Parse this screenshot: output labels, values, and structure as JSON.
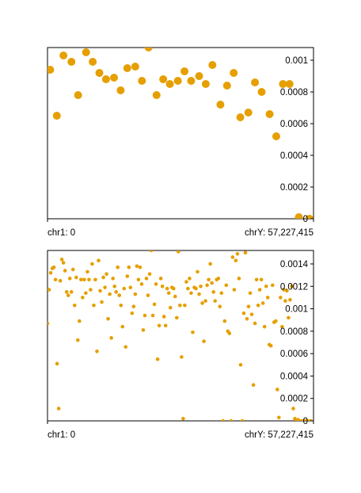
{
  "chart_data": [
    {
      "type": "scatter",
      "color": "#E69F00",
      "x_start_label": "chr1: 0",
      "x_end_label": "chrY: 57,227,415",
      "ylim": [
        0,
        0.00108
      ],
      "y_ticks": [
        "0",
        "0.0002",
        "0.0004",
        "0.0006",
        "0.0008",
        "0.001"
      ],
      "y_tick_values": [
        0,
        0.0002,
        0.0004,
        0.0006,
        0.0008,
        0.001
      ],
      "grid": false,
      "points": [
        [
          0.01,
          0.00094
        ],
        [
          0.035,
          0.00065
        ],
        [
          0.06,
          0.00103
        ],
        [
          0.09,
          0.00099
        ],
        [
          0.115,
          0.00078
        ],
        [
          0.145,
          0.00105
        ],
        [
          0.17,
          0.00099
        ],
        [
          0.195,
          0.00092
        ],
        [
          0.22,
          0.00088
        ],
        [
          0.25,
          0.00089
        ],
        [
          0.275,
          0.00081
        ],
        [
          0.3,
          0.00095
        ],
        [
          0.33,
          0.00096
        ],
        [
          0.355,
          0.00087
        ],
        [
          0.38,
          0.00108
        ],
        [
          0.41,
          0.00078
        ],
        [
          0.435,
          0.00088
        ],
        [
          0.46,
          0.00085
        ],
        [
          0.49,
          0.00087
        ],
        [
          0.515,
          0.00093
        ],
        [
          0.54,
          0.00087
        ],
        [
          0.57,
          0.0009
        ],
        [
          0.595,
          0.00085
        ],
        [
          0.62,
          0.00097
        ],
        [
          0.65,
          0.00072
        ],
        [
          0.675,
          0.00084
        ],
        [
          0.7,
          0.00092
        ],
        [
          0.725,
          0.00064
        ],
        [
          0.755,
          0.00067
        ],
        [
          0.78,
          0.00086
        ],
        [
          0.805,
          0.0008
        ],
        [
          0.835,
          0.00066
        ],
        [
          0.86,
          0.00052
        ],
        [
          0.885,
          0.00085
        ],
        [
          0.91,
          0.00085
        ],
        [
          0.945,
          1e-05
        ],
        [
          0.985,
          0.0
        ]
      ]
    },
    {
      "type": "scatter",
      "color": "#E69F00",
      "x_start_label": "chr1: 0",
      "x_end_label": "chrY: 57,227,415",
      "ylim": [
        0,
        0.00152
      ],
      "y_ticks": [
        "0",
        "0.0002",
        "0.0004",
        "0.0006",
        "0.0008",
        "0.001",
        "0.0012",
        "0.0014"
      ],
      "y_tick_values": [
        0,
        0.0002,
        0.0004,
        0.0006,
        0.0008,
        0.001,
        0.0012,
        0.0014
      ],
      "grid": false,
      "points": [
        [
          0.0,
          0.00087
        ],
        [
          0.006,
          0.00117
        ],
        [
          0.012,
          0.00132
        ],
        [
          0.018,
          0.00136
        ],
        [
          0.024,
          0.00137
        ],
        [
          0.03,
          0.00126
        ],
        [
          0.036,
          0.00051
        ],
        [
          0.042,
          0.00011
        ],
        [
          0.048,
          0.00125
        ],
        [
          0.054,
          0.00144
        ],
        [
          0.06,
          0.00141
        ],
        [
          0.066,
          0.00134
        ],
        [
          0.072,
          0.00115
        ],
        [
          0.078,
          0.00112
        ],
        [
          0.084,
          0.00127
        ],
        [
          0.09,
          0.00115
        ],
        [
          0.096,
          0.00135
        ],
        [
          0.102,
          0.00103
        ],
        [
          0.108,
          0.00128
        ],
        [
          0.114,
          0.00072
        ],
        [
          0.12,
          0.00089
        ],
        [
          0.126,
          0.00126
        ],
        [
          0.132,
          0.0011
        ],
        [
          0.138,
          0.00126
        ],
        [
          0.144,
          0.00114
        ],
        [
          0.15,
          0.00133
        ],
        [
          0.156,
          0.00126
        ],
        [
          0.162,
          0.00117
        ],
        [
          0.168,
          0.0014
        ],
        [
          0.174,
          0.00103
        ],
        [
          0.18,
          0.00126
        ],
        [
          0.186,
          0.00062
        ],
        [
          0.192,
          0.00143
        ],
        [
          0.198,
          0.00116
        ],
        [
          0.204,
          0.00106
        ],
        [
          0.21,
          0.00128
        ],
        [
          0.216,
          0.00119
        ],
        [
          0.222,
          0.00131
        ],
        [
          0.228,
          0.00091
        ],
        [
          0.234,
          0.00113
        ],
        [
          0.24,
          0.00074
        ],
        [
          0.246,
          0.00127
        ],
        [
          0.252,
          0.0012
        ],
        [
          0.258,
          0.00115
        ],
        [
          0.264,
          0.00137
        ],
        [
          0.27,
          0.00112
        ],
        [
          0.276,
          0.00103
        ],
        [
          0.282,
          0.00084
        ],
        [
          0.288,
          0.00118
        ],
        [
          0.294,
          0.00066
        ],
        [
          0.3,
          0.00129
        ],
        [
          0.306,
          0.00137
        ],
        [
          0.312,
          0.00119
        ],
        [
          0.318,
          0.00096
        ],
        [
          0.324,
          0.00102
        ],
        [
          0.33,
          0.00113
        ],
        [
          0.336,
          0.00138
        ],
        [
          0.342,
          0.00126
        ],
        [
          0.348,
          0.00137
        ],
        [
          0.354,
          0.00122
        ],
        [
          0.36,
          0.00081
        ],
        [
          0.366,
          0.00094
        ],
        [
          0.372,
          0.00127
        ],
        [
          0.378,
          0.00112
        ],
        [
          0.384,
          0.00131
        ],
        [
          0.39,
          0.00152
        ],
        [
          0.396,
          0.00094
        ],
        [
          0.402,
          0.00104
        ],
        [
          0.408,
          0.00122
        ],
        [
          0.414,
          0.00055
        ],
        [
          0.42,
          0.00085
        ],
        [
          0.426,
          0.00127
        ],
        [
          0.432,
          0.0012
        ],
        [
          0.438,
          0.00093
        ],
        [
          0.444,
          0.00085
        ],
        [
          0.45,
          0.00118
        ],
        [
          0.456,
          0.00114
        ],
        [
          0.462,
          0.00101
        ],
        [
          0.468,
          0.00119
        ],
        [
          0.474,
          0.00118
        ],
        [
          0.48,
          0.00111
        ],
        [
          0.486,
          0.00092
        ],
        [
          0.492,
          0.00151
        ],
        [
          0.498,
          0.00103
        ],
        [
          0.504,
          0.00057
        ],
        [
          0.51,
          2e-05
        ],
        [
          0.516,
          0.00103
        ],
        [
          0.522,
          0.00124
        ],
        [
          0.528,
          0.00118
        ],
        [
          0.534,
          0.00127
        ],
        [
          0.54,
          0.00114
        ],
        [
          0.546,
          0.00079
        ],
        [
          0.552,
          0.00119
        ],
        [
          0.558,
          0.00118
        ],
        [
          0.564,
          0.00133
        ],
        [
          0.57,
          0.00113
        ],
        [
          0.576,
          0.0012
        ],
        [
          0.582,
          0.00105
        ],
        [
          0.588,
          0.00071
        ],
        [
          0.594,
          0.00107
        ],
        [
          0.6,
          0.00121
        ],
        [
          0.606,
          0.00126
        ],
        [
          0.612,
          0.0014
        ],
        [
          0.618,
          0.00123
        ],
        [
          0.624,
          0.00115
        ],
        [
          0.63,
          0.00107
        ],
        [
          0.636,
          0.00126
        ],
        [
          0.642,
          0.00127
        ],
        [
          0.648,
          0.00102
        ],
        [
          0.654,
          0.00114
        ],
        [
          0.66,
          0.0
        ],
        [
          0.666,
          0.00089
        ],
        [
          0.672,
          0.00121
        ],
        [
          0.678,
          0.0008
        ],
        [
          0.684,
          0.00078
        ],
        [
          0.69,
          0.0
        ],
        [
          0.696,
          0.00146
        ],
        [
          0.702,
          0.00117
        ],
        [
          0.708,
          0.00143
        ],
        [
          0.714,
          0.00149
        ],
        [
          0.72,
          0.00127
        ],
        [
          0.726,
          0.0005
        ],
        [
          0.732,
          0.0
        ],
        [
          0.738,
          0.00096
        ],
        [
          0.744,
          0.0015
        ],
        [
          0.75,
          0.00091
        ],
        [
          0.756,
          0.00102
        ],
        [
          0.762,
          0.00114
        ],
        [
          0.768,
          0.00095
        ],
        [
          0.774,
          0.00032
        ],
        [
          0.78,
          0.00087
        ],
        [
          0.786,
          0.00126
        ],
        [
          0.792,
          0.00103
        ],
        [
          0.798,
          0.00117
        ],
        [
          0.804,
          0.00126
        ],
        [
          0.81,
          0.00105
        ],
        [
          0.816,
          0.00084
        ],
        [
          0.822,
          0.0012
        ],
        [
          0.828,
          0.0011
        ],
        [
          0.834,
          0.00068
        ],
        [
          0.84,
          0.00067
        ],
        [
          0.846,
          0.00121
        ],
        [
          0.852,
          0.00088
        ],
        [
          0.858,
          0.00089
        ],
        [
          0.864,
          0.00028
        ],
        [
          0.87,
          3e-05
        ],
        [
          0.876,
          0.0011
        ],
        [
          0.882,
          0.00084
        ],
        [
          0.888,
          0.00117
        ],
        [
          0.894,
          0.00107
        ],
        [
          0.9,
          0.00116
        ],
        [
          0.906,
          0.00092
        ],
        [
          0.912,
          0.00108
        ],
        [
          0.918,
          0.0012
        ],
        [
          0.924,
          0.00011
        ],
        [
          0.93,
          2e-05
        ],
        [
          0.936,
          0.0
        ],
        [
          0.942,
          1e-05
        ],
        [
          0.948,
          0.0
        ],
        [
          0.956,
          0.0
        ],
        [
          0.964,
          0.0
        ],
        [
          0.972,
          0.0
        ],
        [
          0.98,
          0.0
        ],
        [
          0.99,
          0.0
        ]
      ]
    }
  ]
}
